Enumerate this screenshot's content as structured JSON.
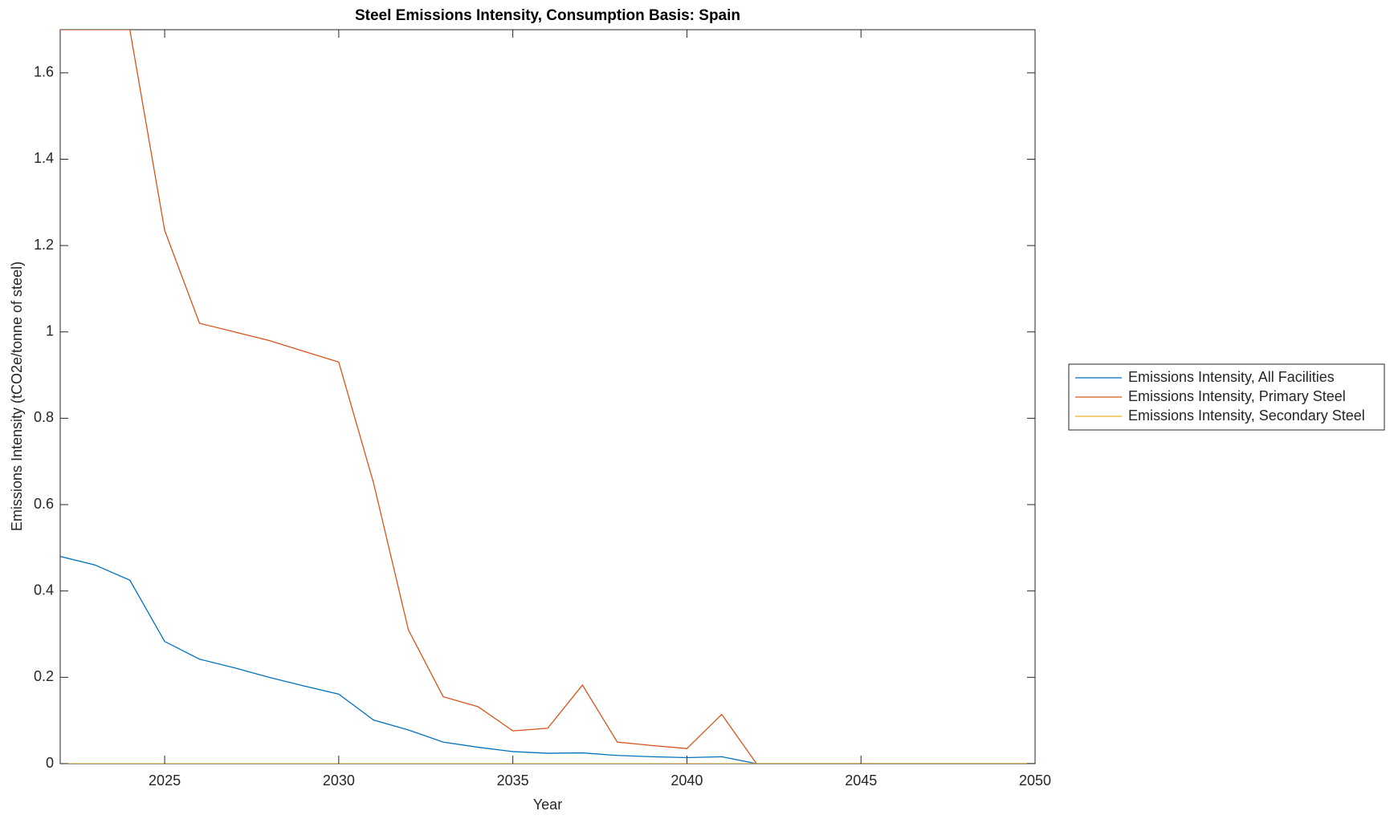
{
  "chart_data": {
    "type": "line",
    "title": "Steel Emissions Intensity, Consumption Basis: Spain",
    "x_label": "Year",
    "y_label": "Emissions Intensity (tCO2e/tonne of steel)",
    "x": [
      2022,
      2023,
      2024,
      2025,
      2026,
      2027,
      2028,
      2029,
      2030,
      2031,
      2032,
      2033,
      2034,
      2035,
      2036,
      2037,
      2038,
      2039,
      2040,
      2041,
      2042,
      2043,
      2044,
      2045,
      2046,
      2047,
      2048,
      2049,
      2050
    ],
    "series": [
      {
        "name": "Emissions Intensity, All Facilities",
        "color": "#0072BD",
        "values": [
          0.48,
          0.46,
          0.425,
          0.283,
          0.242,
          0.222,
          0.2,
          0.18,
          0.161,
          0.101,
          0.078,
          0.05,
          0.038,
          0.028,
          0.024,
          0.025,
          0.019,
          0.016,
          0.014,
          0.016,
          0,
          0,
          0,
          0,
          0,
          0,
          0,
          0,
          0
        ]
      },
      {
        "name": "Emissions Intensity, Primary Steel",
        "color": "#D95319",
        "values": [
          1.7,
          1.7,
          1.7,
          1.235,
          1.02,
          1.0,
          0.98,
          0.955,
          0.93,
          0.65,
          0.31,
          0.155,
          0.132,
          0.076,
          0.082,
          0.182,
          0.05,
          0.042,
          0.035,
          0.114,
          0,
          0,
          0,
          0,
          0,
          0,
          0,
          0,
          0
        ]
      },
      {
        "name": "Emissions Intensity, Secondary Steel",
        "color": "#EDB120",
        "values": [
          0,
          0,
          0,
          0,
          0,
          0,
          0,
          0,
          0,
          0,
          0,
          0,
          0,
          0,
          0,
          0,
          0,
          0,
          0,
          0,
          0,
          0,
          0,
          0,
          0,
          0,
          0,
          0,
          0
        ]
      }
    ],
    "xlim": [
      2022,
      2050
    ],
    "xticks": [
      2025,
      2030,
      2035,
      2040,
      2045,
      2050
    ],
    "ylim": [
      0,
      1.7
    ],
    "yticks": [
      0,
      0.2,
      0.4,
      0.6,
      0.8,
      1,
      1.2,
      1.4,
      1.6
    ],
    "legend_location": "eastoutside"
  }
}
